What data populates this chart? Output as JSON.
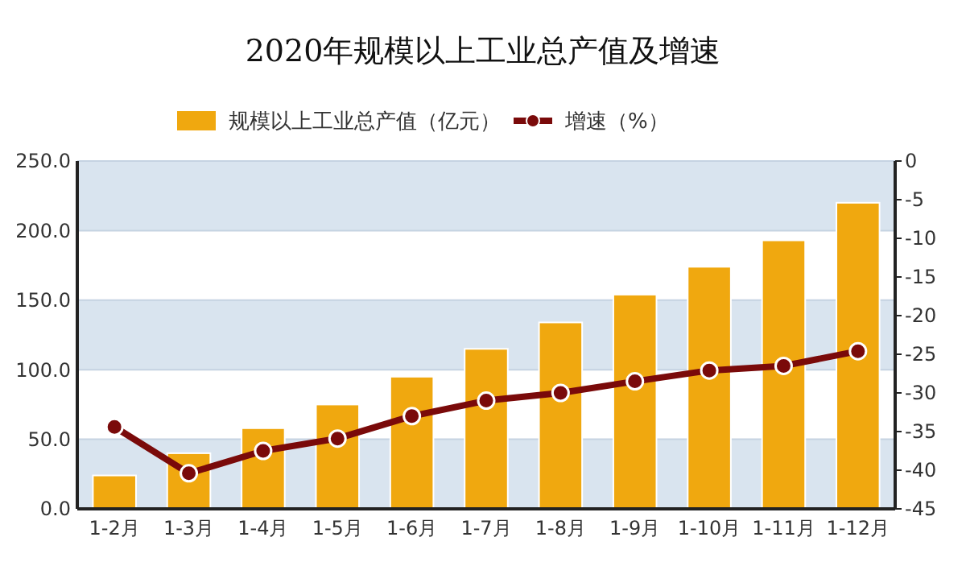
{
  "chart_data": {
    "type": "bar",
    "title": "2020年规模以上工业总产值及增速",
    "categories": [
      "1-2月",
      "1-3月",
      "1-4月",
      "1-5月",
      "1-6月",
      "1-7月",
      "1-8月",
      "1-9月",
      "1-10月",
      "1-11月",
      "1-12月"
    ],
    "series": [
      {
        "name": "规模以上工业总产值（亿元）",
        "color": "#f0a80f",
        "values": [
          24,
          40,
          58,
          75,
          95,
          115,
          134,
          154,
          174,
          193,
          220
        ]
      },
      {
        "name": "增速（%）",
        "type": "line",
        "axis": "y2",
        "color": "#7a0a0a",
        "marker": "circle",
        "values": [
          -34.4,
          -40.4,
          -37.5,
          -35.9,
          -33.0,
          -31.0,
          -30.0,
          -28.5,
          -27.1,
          -26.5,
          -24.6
        ]
      }
    ],
    "ylim": [
      0,
      250
    ],
    "yticks": [
      {
        "value": 0,
        "label": "0.0"
      },
      {
        "value": 50,
        "label": "50.0"
      },
      {
        "value": 100,
        "label": "100.0"
      },
      {
        "value": 150,
        "label": "150.0"
      },
      {
        "value": 200,
        "label": "200.0"
      },
      {
        "value": 250,
        "label": "250.0"
      }
    ],
    "y2lim": [
      -45,
      0
    ],
    "y2ticks": [
      -45,
      -40,
      -35,
      -30,
      -25,
      -20,
      -15,
      -10,
      -5,
      0
    ],
    "grid": "y",
    "legend": "top"
  }
}
